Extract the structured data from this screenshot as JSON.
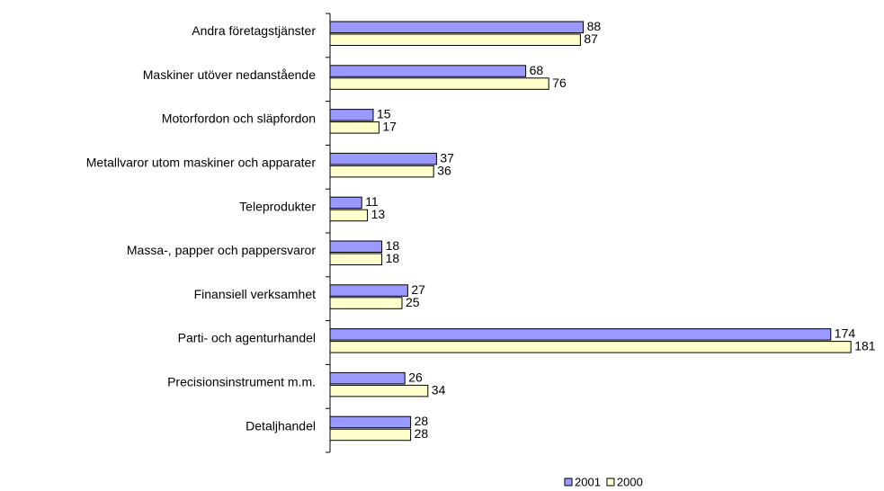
{
  "chart_data": {
    "type": "bar",
    "orientation": "horizontal",
    "categories": [
      "Andra företagstjänster",
      "Maskiner utöver nedanstående",
      "Motorfordon och släpfordon",
      "Metallvaror utom maskiner och apparater",
      "Teleprodukter",
      "Massa-, papper och pappersvaror",
      "Finansiell verksamhet",
      "Parti- och agenturhandel",
      "Precisionsinstrument m.m.",
      "Detaljhandel"
    ],
    "series": [
      {
        "name": "2001",
        "color": "#9999ff",
        "values": [
          88,
          68,
          15,
          37,
          11,
          18,
          27,
          174,
          26,
          28
        ]
      },
      {
        "name": "2000",
        "color": "#ffffcc",
        "values": [
          87,
          76,
          17,
          36,
          13,
          18,
          25,
          181,
          34,
          28
        ]
      }
    ],
    "xlim": [
      0,
      185
    ],
    "legend": "bottom"
  }
}
